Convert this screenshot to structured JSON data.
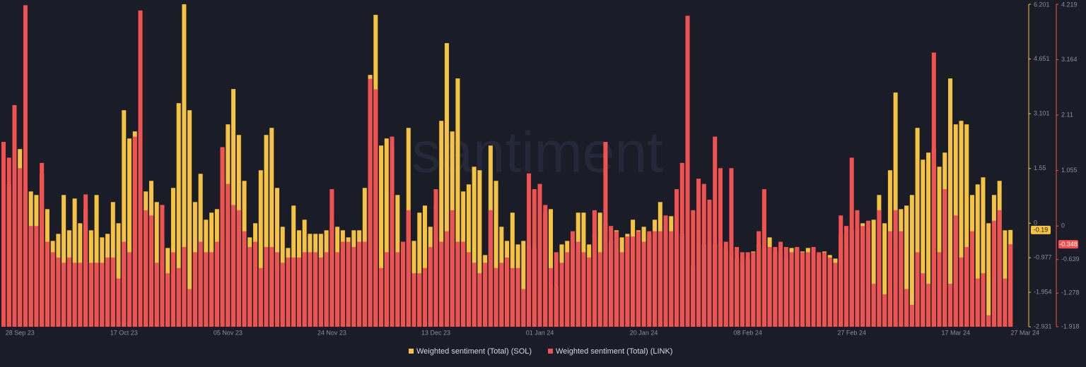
{
  "chart_data": {
    "type": "bar",
    "watermark": "santiment",
    "categories": [
      null,
      null,
      null,
      "28 Sep 23",
      null,
      null,
      null,
      null,
      null,
      null,
      null,
      null,
      null,
      null,
      null,
      null,
      null,
      null,
      null,
      null,
      null,
      null,
      "17 Oct 23",
      null,
      null,
      null,
      null,
      null,
      null,
      null,
      null,
      null,
      null,
      null,
      null,
      null,
      null,
      null,
      null,
      null,
      null,
      "05 Nov 23",
      null,
      null,
      null,
      null,
      null,
      null,
      null,
      null,
      null,
      null,
      null,
      null,
      null,
      null,
      null,
      null,
      null,
      null,
      "24 Nov 23",
      null,
      null,
      null,
      null,
      null,
      null,
      null,
      null,
      null,
      null,
      null,
      null,
      null,
      null,
      null,
      null,
      null,
      null,
      "13 Dec 23",
      null,
      null,
      null,
      null,
      null,
      null,
      null,
      null,
      null,
      null,
      null,
      null,
      null,
      null,
      null,
      null,
      null,
      null,
      "01 Jan 24",
      null,
      null,
      null,
      null,
      null,
      null,
      null,
      null,
      null,
      null,
      null,
      null,
      null,
      null,
      null,
      null,
      null,
      null,
      "20 Jan 24",
      null,
      null,
      null,
      null,
      null,
      null,
      null,
      null,
      null,
      null,
      null,
      null,
      null,
      null,
      null,
      null,
      null,
      null,
      "08 Feb 24",
      null,
      null,
      null,
      null,
      null,
      null,
      null,
      null,
      null,
      null,
      null,
      null,
      null,
      null,
      null,
      null,
      null,
      null,
      "27 Feb 24",
      null,
      null,
      null,
      null,
      null,
      null,
      null,
      null,
      null,
      null,
      null,
      null,
      null,
      null,
      null,
      null,
      null,
      null,
      "17 Mar 24",
      null,
      null,
      null,
      null,
      null,
      null,
      null,
      null,
      null,
      "27 Mar 24"
    ],
    "series": [
      {
        "name": "Weighted sentiment (Total) (SOL)",
        "color": "#f5c242",
        "axis": "y",
        "values": [
          0.4,
          1.1,
          0.5,
          2.1,
          1.0,
          0.9,
          0.8,
          1.4,
          0.4,
          -0.5,
          -0.3,
          0.8,
          -0.2,
          0.7,
          0,
          0.4,
          -0.2,
          0.8,
          -0.4,
          -0.3,
          0.6,
          0,
          3.2,
          2.4,
          2.6,
          2.2,
          0.9,
          1.2,
          0.6,
          -0.5,
          -0.7,
          1.0,
          3.4,
          6.2,
          3.2,
          0.6,
          1.4,
          0.1,
          0.3,
          0.4,
          2.1,
          2.8,
          3.8,
          2.5,
          1.2,
          -0.4,
          0,
          1.5,
          2.5,
          2.7,
          1.0,
          -0.1,
          -0.7,
          0.5,
          -0.2,
          0.1,
          -0.3,
          -0.3,
          -0.3,
          -0.2,
          0.1,
          -0.1,
          -0.2,
          -0.4,
          -0.2,
          -0.2,
          1.0,
          4.2,
          5.9,
          2.2,
          2.4,
          2.2,
          0.8,
          -0.7,
          2.7,
          -0.5,
          0.3,
          0.5,
          -0.1,
          0.5,
          2.9,
          5.1,
          2.6,
          4.1,
          0.9,
          1.1,
          1.6,
          1.5,
          -0.9,
          2.2,
          1.2,
          -0.1,
          -0.5,
          0.3,
          -0.6,
          -0.5,
          -0.6,
          -0.7,
          -0.7,
          0.3,
          0.4,
          -1.8,
          -0.6,
          -0.5,
          -0.6,
          0.3,
          0.3,
          -0.6,
          -0.3,
          0.3,
          0,
          -0.5,
          -0.2,
          -0.4,
          -0.3,
          0.1,
          -0.2,
          -0.1,
          -0.3,
          0.1,
          0.6,
          -0.3,
          0.2,
          -0.3,
          -0.3,
          -0.5,
          -1.2,
          -0.5,
          -0.6,
          -0.5,
          -0.6,
          -0.5,
          -0.7,
          -0.8,
          -1.0,
          -1.1,
          -1.0,
          -0.8,
          -0.6,
          -0.7,
          -0.4,
          -0.8,
          -0.8,
          -1.0,
          -0.7,
          -0.7,
          -0.8,
          -0.7,
          -0.8,
          -0.9,
          -0.8,
          -0.9,
          -1.0,
          -0.3,
          -0.6,
          -0.2,
          -0.1,
          0,
          -0.2,
          0.1,
          0.8,
          0,
          1.5,
          3.7,
          0.4,
          0.5,
          0.8,
          2.7,
          1.8,
          2.0,
          2.1,
          1.6,
          2.0,
          4.1,
          2.8,
          2.9,
          2.8,
          0.8,
          1.1,
          1.3,
          0,
          0.8,
          1.2,
          -0.2,
          -0.19
        ]
      },
      {
        "name": "Weighted sentiment (Total) (LINK)",
        "color": "#f05252",
        "axis": "y2",
        "values": [
          1.6,
          1.3,
          2.3,
          1.1,
          4.2,
          0,
          0,
          1.2,
          -0.3,
          -0.5,
          -0.6,
          -0.7,
          -0.6,
          -0.7,
          -0.7,
          0.6,
          -0.7,
          -0.7,
          -0.7,
          -0.6,
          -0.6,
          -1.0,
          -0.3,
          -0.5,
          1.7,
          4.1,
          0.3,
          0.2,
          -0.7,
          0.4,
          -0.9,
          -0.5,
          -0.8,
          -0.4,
          -1.2,
          -0.5,
          -0.3,
          -0.5,
          -0.5,
          -0.3,
          1.5,
          0.8,
          0.4,
          0.3,
          -0.1,
          -0.4,
          -0.3,
          -0.8,
          -0.4,
          -0.4,
          -0.5,
          -0.7,
          -0.6,
          -0.6,
          -0.6,
          -0.5,
          -0.5,
          -0.5,
          -0.6,
          -0.5,
          0.7,
          -0.5,
          -0.3,
          -0.3,
          -0.4,
          -0.3,
          -0.3,
          2.8,
          2.6,
          -0.8,
          -0.5,
          1.7,
          -0.5,
          -0.3,
          0.3,
          -0.9,
          -0.9,
          -0.8,
          -0.4,
          0.7,
          -0.3,
          -0.1,
          0.3,
          -0.3,
          -0.3,
          -0.5,
          -0.7,
          -0.9,
          -0.7,
          0.3,
          -0.8,
          -0.7,
          -0.6,
          -0.8,
          -0.8,
          -1.2,
          1.0,
          0.7,
          0.8,
          0.4,
          -0.8,
          -0.5,
          -0.7,
          -0.5,
          -0.1,
          -0.3,
          -0.5,
          -0.6,
          0.3,
          -0.5,
          1.6,
          0,
          -0.1,
          -0.5,
          -0.2,
          -0.2,
          -0.1,
          -0.3,
          -0.1,
          -0.1,
          -0.1,
          0.2,
          -0.1,
          0.7,
          1.2,
          4.0,
          0.3,
          0.9,
          0.8,
          0.5,
          1.7,
          1.1,
          -0.3,
          1.1,
          -0.4,
          -0.5,
          -0.5,
          -0.5,
          -0.1,
          0.7,
          -0.4,
          -0.4,
          -0.3,
          -0.4,
          -0.5,
          -0.4,
          -0.5,
          -0.5,
          -0.4,
          -0.5,
          -0.5,
          -0.6,
          -0.7,
          0.2,
          0,
          1.3,
          0.3,
          0,
          0.1,
          -1.1,
          0.3,
          -1.3,
          -0.1,
          0.3,
          -0.1,
          -1.2,
          -1.5,
          -0.5,
          -0.9,
          -1.1,
          3.3,
          -0.5,
          0.7,
          -1.1,
          0.2,
          -0.6,
          -0.4,
          -0.1,
          -1.0,
          -0.9,
          -1.7,
          0.1,
          0.3,
          -1.0,
          -0.348
        ]
      }
    ],
    "ylim": [
      -2.931,
      6.201
    ],
    "yticks": [
      6.201,
      4.651,
      3.101,
      1.55,
      0,
      -0.977,
      -1.954,
      -2.931
    ],
    "y2lim": [
      -1.918,
      4.219
    ],
    "y2ticks": [
      4.219,
      3.164,
      2.11,
      1.055,
      0,
      -0.639,
      -1.278,
      -1.918
    ]
  }
}
